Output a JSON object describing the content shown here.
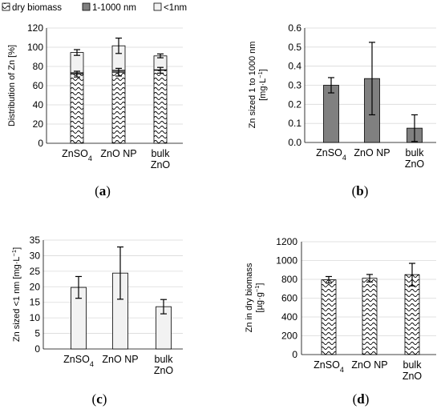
{
  "legend": [
    {
      "label": "dry biomass",
      "pattern": "wave"
    },
    {
      "label": "1-1000 nm",
      "pattern": "dark"
    },
    {
      "label": "<1nm",
      "pattern": "light"
    }
  ],
  "colors": {
    "dark_fill": "#808080",
    "light_fill": "#f2f2f2",
    "pattern_fill": "#ffffff",
    "stroke": "#000000",
    "grid": "#d9d9d9"
  },
  "chart_data": [
    {
      "panel": "(a)",
      "panel_letter": "a",
      "type": "bar",
      "stacked": true,
      "ylabel": "Distribution of Zn [%]",
      "ylim": [
        0,
        120
      ],
      "yticks": [
        "0",
        "20",
        "40",
        "60",
        "80",
        "100",
        "120"
      ],
      "categories": [
        {
          "line1": "ZnSO",
          "sub": "4",
          "line2": ""
        },
        {
          "line1": "ZnO NP",
          "sub": "",
          "line2": ""
        },
        {
          "line1": "bulk",
          "sub": "",
          "line2": "ZnO"
        }
      ],
      "series": [
        {
          "name": "dry biomass",
          "pattern": "wave",
          "values": [
            72,
            74,
            76
          ],
          "errors": [
            3,
            4,
            3
          ]
        },
        {
          "name": "1-1000 nm",
          "pattern": "dark",
          "values": [
            1.5,
            2,
            0.5
          ],
          "errors": [
            0,
            0,
            0
          ]
        },
        {
          "name": "<1nm",
          "pattern": "light",
          "values": [
            21,
            25.5,
            14.5
          ],
          "errors": [
            3,
            8,
            2
          ]
        }
      ],
      "grid": true
    },
    {
      "panel": "(b)",
      "panel_letter": "b",
      "type": "bar",
      "ylabel_line1": "Zn sized 1 to 1000 nm",
      "ylabel_line2": "[mg·L",
      "ylabel_sup": "−1",
      "ylabel_tail": "]",
      "ylim": [
        0,
        0.6
      ],
      "yticks": [
        "0.0",
        "0.1",
        "0.2",
        "0.3",
        "0.4",
        "0.5",
        "0.6"
      ],
      "categories": [
        {
          "line1": "ZnSO",
          "sub": "4",
          "line2": ""
        },
        {
          "line1": "ZnO NP",
          "sub": "",
          "line2": ""
        },
        {
          "line1": "bulk",
          "sub": "",
          "line2": "ZnO"
        }
      ],
      "values": [
        0.3,
        0.335,
        0.075
      ],
      "errors": [
        0.04,
        0.19,
        0.07
      ],
      "pattern": "dark",
      "grid": true
    },
    {
      "panel": "(c)",
      "panel_letter": "c",
      "type": "bar",
      "ylabel_line1": "Zn sized <1 nm [mg·L",
      "ylabel_sup": "−1",
      "ylabel_tail": "]",
      "ylim": [
        0,
        35
      ],
      "yticks": [
        "0",
        "5",
        "10",
        "15",
        "20",
        "25",
        "30",
        "35"
      ],
      "categories": [
        {
          "line1": "ZnSO",
          "sub": "4",
          "line2": ""
        },
        {
          "line1": "ZnO NP",
          "sub": "",
          "line2": ""
        },
        {
          "line1": "bulk",
          "sub": "",
          "line2": "ZnO"
        }
      ],
      "values": [
        19.8,
        24.4,
        13.6
      ],
      "errors": [
        3.5,
        8.4,
        2.3
      ],
      "pattern": "light",
      "grid": true
    },
    {
      "panel": "(d)",
      "panel_letter": "d",
      "type": "bar",
      "ylabel_line1": "Zn in dry biomass",
      "ylabel_line2": "[µg·g",
      "ylabel_sup": "−1",
      "ylabel_tail": "]",
      "ylim": [
        0,
        1200
      ],
      "yticks": [
        "0",
        "200",
        "400",
        "600",
        "800",
        "1000",
        "1200"
      ],
      "categories": [
        {
          "line1": "ZnSO",
          "sub": "4",
          "line2": ""
        },
        {
          "line1": "ZnO NP",
          "sub": "",
          "line2": ""
        },
        {
          "line1": "bulk",
          "sub": "",
          "line2": "ZnO"
        }
      ],
      "values": [
        795,
        812,
        850
      ],
      "errors": [
        35,
        40,
        120
      ],
      "pattern": "wave",
      "grid": true
    }
  ]
}
